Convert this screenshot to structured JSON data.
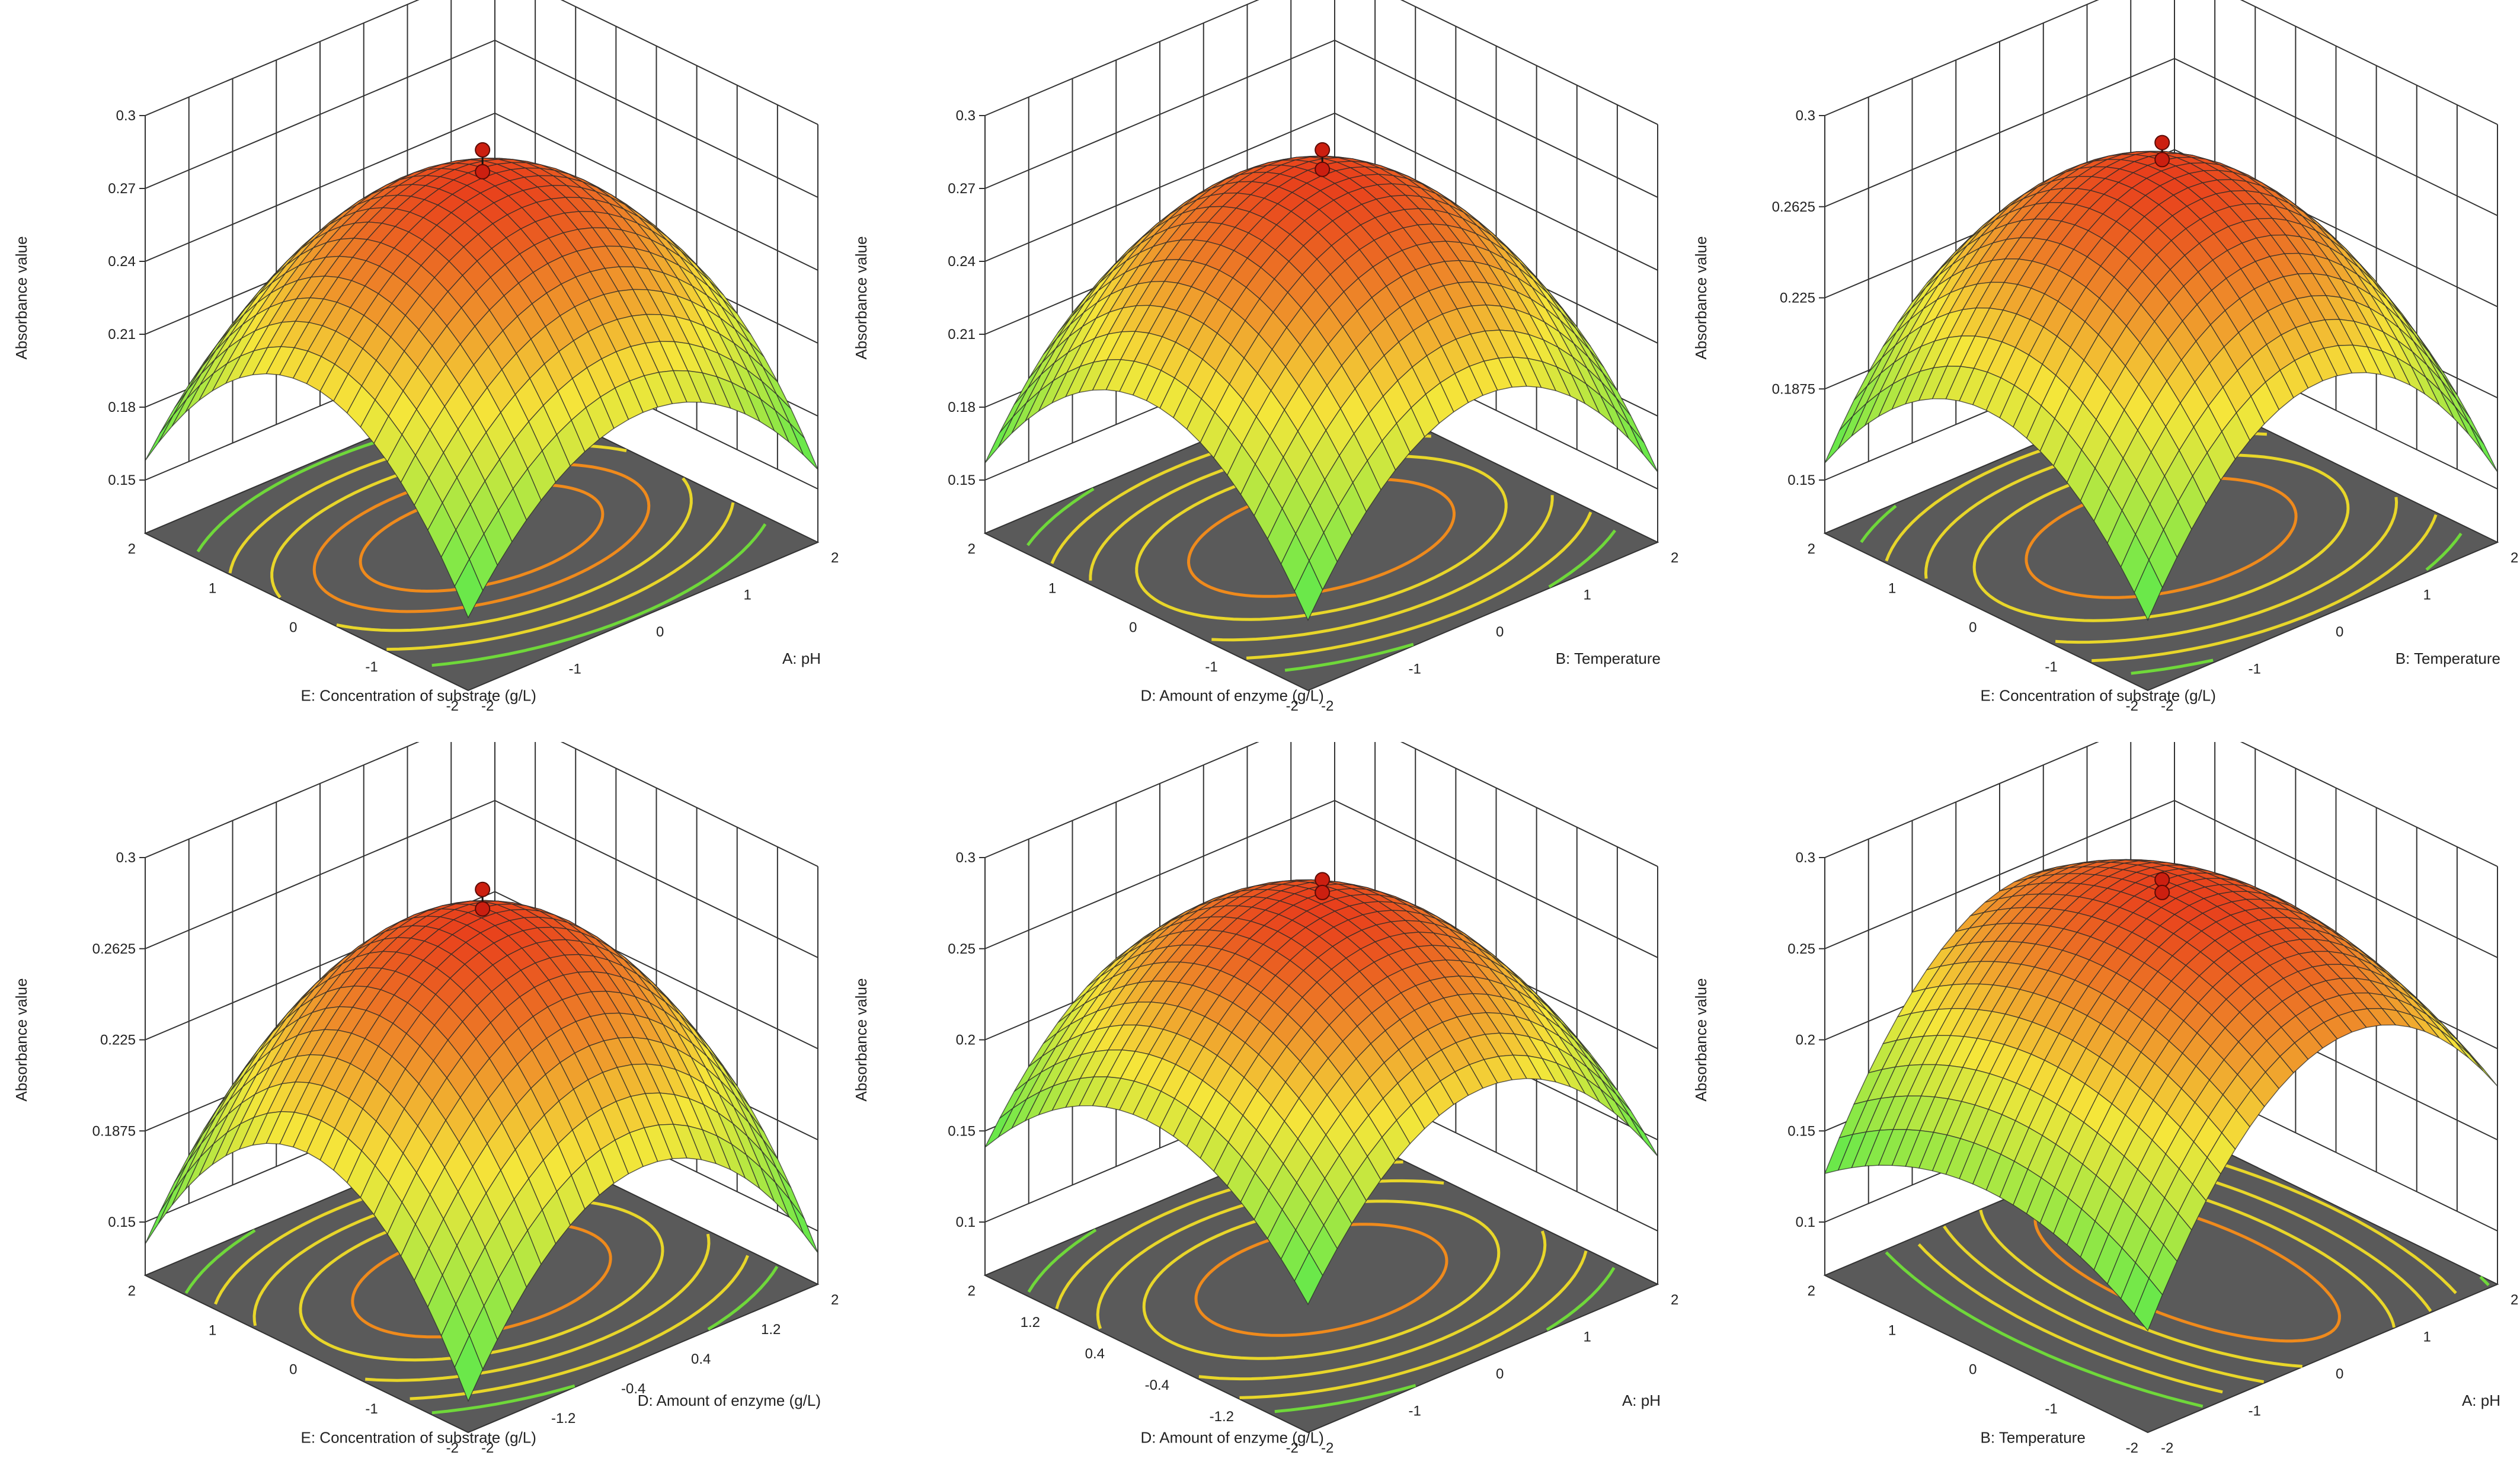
{
  "colors": {
    "floor": "#5a5a5a",
    "grid": "#333333",
    "high": "#e8401c",
    "mid": "#f5e63a",
    "low": "#6be84a",
    "point": "#cc1f10"
  },
  "chart_data": [
    {
      "type": "surface3d",
      "zlabel": "Absorbance value",
      "xlabel": "A: pH",
      "ylabel": "E: Concentration of substrate (g/L)",
      "x_ticks": [
        "-2",
        "-1",
        "0",
        "1",
        "2"
      ],
      "y_ticks": [
        "-2",
        "-1",
        "0",
        "1",
        "2"
      ],
      "z_ticks": [
        "0.15",
        "0.18",
        "0.21",
        "0.24",
        "0.27",
        "0.3"
      ],
      "zlim": [
        0.15,
        0.3
      ],
      "surface": {
        "peak": 0.276,
        "curv_x": 0.0135,
        "curv_y": 0.016,
        "center": [
          0,
          0
        ]
      },
      "design_points": [
        0.283,
        0.274
      ],
      "contours": {
        "center": [
          0,
          0
        ],
        "radii": [
          [
            1.2,
            0.75
          ],
          [
            1.65,
            1.05
          ],
          [
            2.05,
            1.35
          ],
          [
            2.45,
            1.65
          ],
          [
            2.85,
            1.95
          ]
        ],
        "colors": [
          "orange",
          "orange",
          "yellow",
          "yellow",
          "green"
        ]
      }
    },
    {
      "type": "surface3d",
      "zlabel": "Absorbance value",
      "xlabel": "B: Temperature",
      "ylabel": "D: Amount of enzyme (g/L)",
      "x_ticks": [
        "-2",
        "-1",
        "0",
        "1",
        "2"
      ],
      "y_ticks": [
        "-2",
        "-1",
        "0",
        "1",
        "2"
      ],
      "z_ticks": [
        "0.15",
        "0.18",
        "0.21",
        "0.24",
        "0.27",
        "0.3"
      ],
      "zlim": [
        0.15,
        0.3
      ],
      "surface": {
        "peak": 0.277,
        "curv_x": 0.0155,
        "curv_y": 0.0145,
        "center": [
          0,
          0
        ]
      },
      "design_points": [
        0.283,
        0.275
      ],
      "contours": {
        "center": [
          0,
          0
        ],
        "radii": [
          [
            1.3,
            0.85
          ],
          [
            1.8,
            1.2
          ],
          [
            2.25,
            1.5
          ],
          [
            2.65,
            1.8
          ],
          [
            3.0,
            2.05
          ]
        ],
        "colors": [
          "orange",
          "yellow",
          "yellow",
          "yellow",
          "green"
        ]
      }
    },
    {
      "type": "surface3d",
      "zlabel": "Absorbance value",
      "xlabel": "B: Temperature",
      "ylabel": "E: Concentration of substrate (g/L)",
      "x_ticks": [
        "-2",
        "-1",
        "0",
        "1",
        "2"
      ],
      "y_ticks": [
        "-2",
        "-1",
        "0",
        "1",
        "2"
      ],
      "z_ticks": [
        "0.15",
        "0.1875",
        "0.225",
        "0.2625",
        "0.3"
      ],
      "zlim": [
        0.15,
        0.3
      ],
      "surface": {
        "peak": 0.279,
        "curv_x": 0.017,
        "curv_y": 0.0135,
        "center": [
          0,
          0
        ]
      },
      "design_points": [
        0.286,
        0.279
      ],
      "contours": {
        "center": [
          0,
          0
        ],
        "radii": [
          [
            1.3,
            0.9
          ],
          [
            1.8,
            1.25
          ],
          [
            2.25,
            1.6
          ],
          [
            2.65,
            1.9
          ],
          [
            3.0,
            2.15
          ]
        ],
        "colors": [
          "orange",
          "yellow",
          "yellow",
          "yellow",
          "green"
        ]
      }
    },
    {
      "type": "surface3d",
      "zlabel": "Absorbance value",
      "xlabel": "D: Amount of enzyme (g/L)",
      "ylabel": "E: Concentration of substrate (g/L)",
      "x_ticks": [
        "-2",
        "-1.2",
        "-0.4",
        "0.4",
        "1.2",
        "2"
      ],
      "y_ticks": [
        "-2",
        "-1",
        "0",
        "1",
        "2"
      ],
      "z_ticks": [
        "0.15",
        "0.1875",
        "0.225",
        "0.2625",
        "0.3"
      ],
      "zlim": [
        0.15,
        0.3
      ],
      "surface": {
        "peak": 0.277,
        "curv_x": 0.0165,
        "curv_y": 0.0175,
        "center": [
          0,
          0
        ]
      },
      "design_points": [
        0.284,
        0.276
      ],
      "contours": {
        "center": [
          0,
          0
        ],
        "radii": [
          [
            1.25,
            0.85
          ],
          [
            1.75,
            1.2
          ],
          [
            2.2,
            1.5
          ],
          [
            2.6,
            1.8
          ],
          [
            2.95,
            2.05
          ]
        ],
        "colors": [
          "orange",
          "yellow",
          "yellow",
          "yellow",
          "green"
        ]
      }
    },
    {
      "type": "surface3d",
      "zlabel": "Absorbance value",
      "xlabel": "A: pH",
      "ylabel": "D: Amount of enzyme (g/L)",
      "x_ticks": [
        "-2",
        "-1",
        "0",
        "1",
        "2"
      ],
      "y_ticks": [
        "-2",
        "-1.2",
        "-0.4",
        "0.4",
        "1.2",
        "2"
      ],
      "z_ticks": [
        "0.1",
        "0.15",
        "0.2",
        "0.25",
        "0.3"
      ],
      "zlim": [
        0.1,
        0.3
      ],
      "surface": {
        "peak": 0.277,
        "curv_x": 0.0195,
        "curv_y": 0.0145,
        "center": [
          0,
          0
        ]
      },
      "design_points": [
        0.284,
        0.277
      ],
      "contours": {
        "center": [
          0,
          0
        ],
        "radii": [
          [
            1.2,
            0.85
          ],
          [
            1.7,
            1.2
          ],
          [
            2.15,
            1.5
          ],
          [
            2.55,
            1.8
          ],
          [
            2.9,
            2.05
          ]
        ],
        "colors": [
          "orange",
          "yellow",
          "yellow",
          "yellow",
          "green"
        ]
      }
    },
    {
      "type": "surface3d",
      "zlabel": "Absorbance value",
      "xlabel": "A: pH",
      "ylabel": "B: Temperature",
      "x_ticks": [
        "-2",
        "-1",
        "0",
        "1",
        "2"
      ],
      "y_ticks": [
        "-2",
        "-1",
        "0",
        "1",
        "2"
      ],
      "z_ticks": [
        "0.1",
        "0.15",
        "0.2",
        "0.25",
        "0.3"
      ],
      "zlim": [
        0.1,
        0.3
      ],
      "surface": {
        "peak": 0.277,
        "curv_x": 0.022,
        "curv_y": 0.0085,
        "center": [
          0.3,
          0
        ]
      },
      "design_points": [
        0.284,
        0.277
      ],
      "contours": {
        "center": [
          0.3,
          0
        ],
        "radii": [
          [
            0.75,
            1.7
          ],
          [
            1.05,
            2.3
          ],
          [
            1.35,
            2.8
          ],
          [
            1.65,
            3.2
          ],
          [
            1.95,
            3.6
          ]
        ],
        "colors": [
          "orange",
          "yellow",
          "yellow",
          "yellow",
          "green"
        ]
      }
    }
  ]
}
